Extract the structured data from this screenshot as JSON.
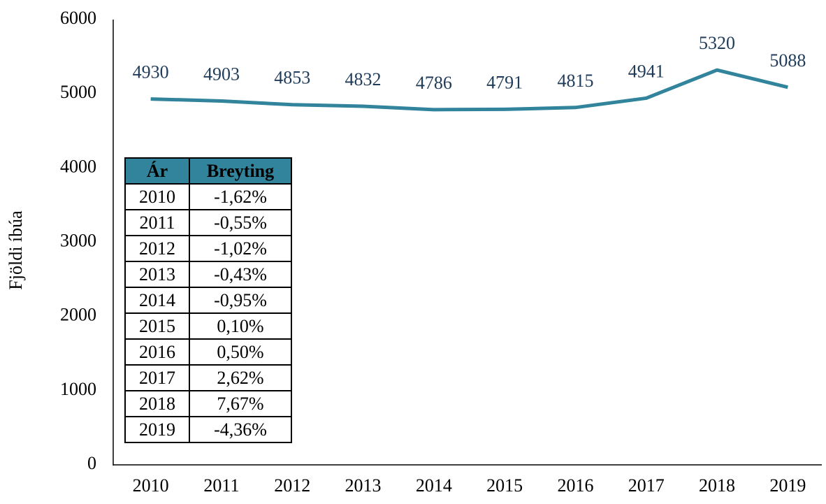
{
  "chart_data": {
    "type": "line",
    "y_label": "Fjöldi íbúa",
    "categories": [
      "2010",
      "2011",
      "2012",
      "2013",
      "2014",
      "2015",
      "2016",
      "2017",
      "2018",
      "2019"
    ],
    "values": [
      4930,
      4903,
      4853,
      4832,
      4786,
      4791,
      4815,
      4941,
      5320,
      5088
    ],
    "color": "#31849b",
    "ylim": [
      0,
      6000
    ],
    "yticks": [
      0,
      1000,
      2000,
      3000,
      4000,
      5000,
      6000
    ],
    "grid": false
  },
  "table": {
    "header": [
      "Ár",
      "Breyting"
    ],
    "rows": [
      [
        "2010",
        "-1,62%"
      ],
      [
        "2011",
        "-0,55%"
      ],
      [
        "2012",
        "-1,02%"
      ],
      [
        "2013",
        "-0,43%"
      ],
      [
        "2014",
        "-0,95%"
      ],
      [
        "2015",
        "0,10%"
      ],
      [
        "2016",
        "0,50%"
      ],
      [
        "2017",
        "2,62%"
      ],
      [
        "2018",
        "7,67%"
      ],
      [
        "2019",
        "-4,36%"
      ]
    ]
  }
}
